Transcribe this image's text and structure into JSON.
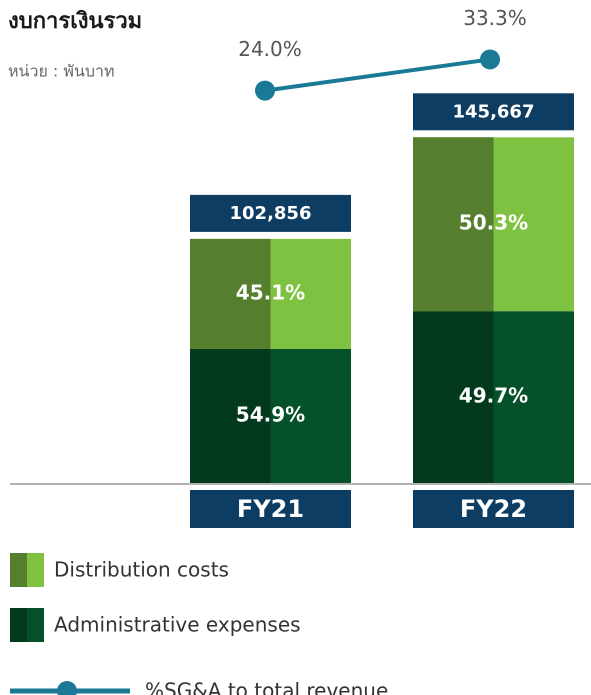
{
  "chart_data": {
    "type": "bar",
    "title": "งบการเงินรวม",
    "subtitle": "หน่วย : พันบาท",
    "categories": [
      "FY21",
      "FY22"
    ],
    "totals": [
      102856,
      145667
    ],
    "total_labels": [
      "102,856",
      "145,667"
    ],
    "ylim": [
      0,
      150000
    ],
    "y2lim": [
      20,
      40
    ],
    "series": [
      {
        "name": "Administrative expenses",
        "color": "#05512a",
        "shade_color": "#033a1e",
        "values": [
          54.9,
          49.7
        ],
        "value_labels": [
          "54.9%",
          "49.7%"
        ]
      },
      {
        "name": "Distribution costs",
        "color": "#7fc241",
        "shade_color": "#557f2e",
        "values": [
          45.1,
          50.3
        ],
        "value_labels": [
          "45.1%",
          "50.3%"
        ]
      },
      {
        "name": "%SG&A to total revenue",
        "type": "line",
        "axis": "y2",
        "color": "#1a7a96",
        "values": [
          24.0,
          33.3
        ],
        "value_labels": [
          "24.0%",
          "33.3%"
        ]
      }
    ],
    "legend_order": [
      1,
      0,
      2
    ]
  }
}
